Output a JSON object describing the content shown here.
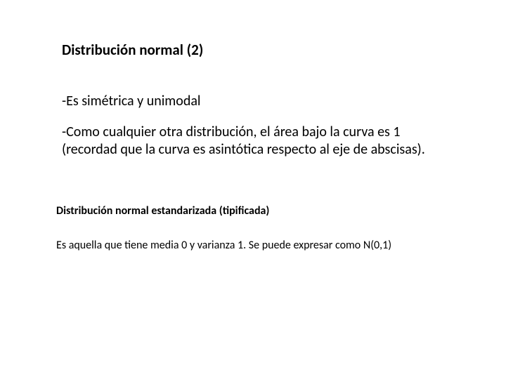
{
  "title": "Distribución normal (2)",
  "bullets": [
    "-Es simétrica y unimodal",
    "-Como cualquier otra distribución, el área bajo la curva es 1 (recordad que la curva es asintótica respecto al eje de abscisas)."
  ],
  "subtitle": "Distribución normal estandarizada (tipificada)",
  "bodytext": "Es aquella que tiene media 0 y varianza 1. Se puede expresar como N(0,1)",
  "colors": {
    "background": "#ffffff",
    "text": "#000000"
  },
  "typography": {
    "title_fontsize": 21,
    "title_weight": 700,
    "bullet_fontsize": 20,
    "bullet_weight": 400,
    "subtitle_fontsize": 16,
    "subtitle_weight": 700,
    "body_fontsize": 16,
    "body_weight": 400,
    "font_family": "Calibri"
  }
}
